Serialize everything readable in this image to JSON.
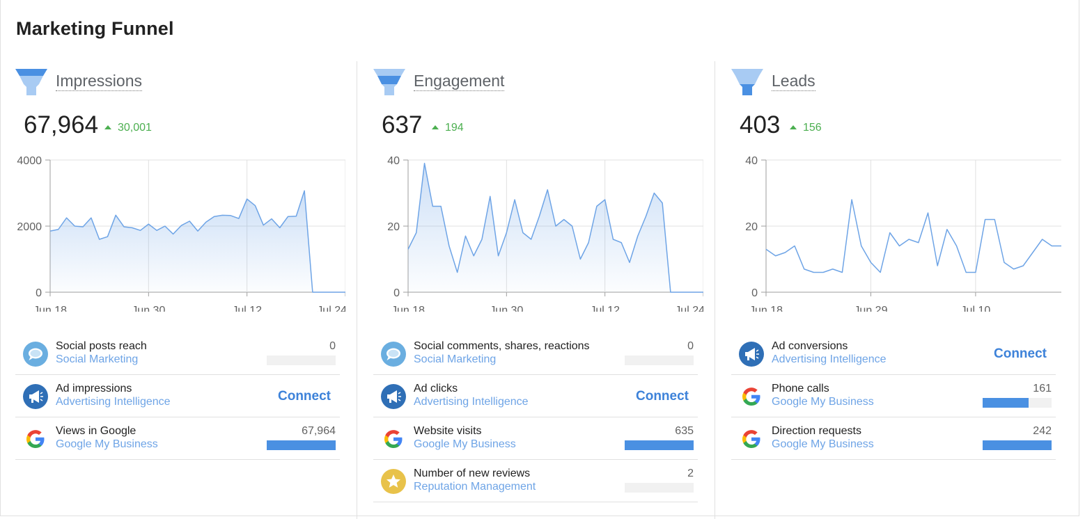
{
  "title": "Marketing Funnel",
  "colors": {
    "accent": "#4a90e2",
    "positive": "#4caf50",
    "link": "#6ea4e6",
    "line": "#6ea4e6"
  },
  "columns": [
    {
      "title": "Impressions",
      "total": "67,964",
      "delta": "30,001",
      "metrics": [
        {
          "icon": "speech-bubble-icon",
          "name": "Social posts reach",
          "source": "Social Marketing",
          "value": "0",
          "bar_fraction": 0
        },
        {
          "icon": "megaphone-icon",
          "name": "Ad impressions",
          "source": "Advertising Intelligence",
          "connect": "Connect"
        },
        {
          "icon": "google-icon",
          "name": "Views in Google",
          "source": "Google My Business",
          "value": "67,964",
          "bar_fraction": 1.0
        }
      ]
    },
    {
      "title": "Engagement",
      "total": "637",
      "delta": "194",
      "metrics": [
        {
          "icon": "speech-bubble-icon",
          "name": "Social comments, shares, reactions",
          "source": "Social Marketing",
          "value": "0",
          "bar_fraction": 0
        },
        {
          "icon": "megaphone-icon",
          "name": "Ad clicks",
          "source": "Advertising Intelligence",
          "connect": "Connect"
        },
        {
          "icon": "google-icon",
          "name": "Website visits",
          "source": "Google My Business",
          "value": "635",
          "bar_fraction": 1.0
        },
        {
          "icon": "star-icon",
          "name": "Number of new reviews",
          "source": "Reputation Management",
          "value": "2",
          "bar_fraction": 0
        }
      ]
    },
    {
      "title": "Leads",
      "total": "403",
      "delta": "156",
      "metrics": [
        {
          "icon": "megaphone-icon",
          "name": "Ad conversions",
          "source": "Advertising Intelligence",
          "connect": "Connect"
        },
        {
          "icon": "google-icon",
          "name": "Phone calls",
          "source": "Google My Business",
          "value": "161",
          "bar_fraction": 0.67
        },
        {
          "icon": "google-icon",
          "name": "Direction requests",
          "source": "Google My Business",
          "value": "242",
          "bar_fraction": 1.0
        }
      ]
    }
  ],
  "chart_data": [
    {
      "type": "area",
      "x_start": "Jun 18",
      "x_end": "Jul 24",
      "x_ticks": [
        "Jun 18",
        "Jun 30",
        "Jul 12",
        "Jul 24"
      ],
      "x_tick_days": [
        0,
        12,
        24,
        36
      ],
      "ylim": [
        0,
        4000
      ],
      "y_ticks": [
        "4000",
        "2000",
        "0"
      ],
      "y_tick_values": [
        4000,
        2000,
        0
      ],
      "grid": true,
      "values": [
        1850,
        1900,
        2250,
        2000,
        1980,
        2250,
        1600,
        1680,
        2330,
        1980,
        1950,
        1870,
        2060,
        1870,
        2000,
        1760,
        2020,
        2150,
        1850,
        2120,
        2290,
        2330,
        2320,
        2230,
        2820,
        2620,
        2030,
        2220,
        1950,
        2290,
        2300,
        3070,
        0,
        0,
        0,
        0,
        0
      ]
    },
    {
      "type": "area",
      "x_start": "Jun 18",
      "x_end": "Jul 24",
      "x_ticks": [
        "Jun 18",
        "Jun 30",
        "Jul 12",
        "Jul 24"
      ],
      "x_tick_days": [
        0,
        12,
        24,
        36
      ],
      "ylim": [
        0,
        40
      ],
      "y_ticks": [
        "40",
        "20",
        "0"
      ],
      "y_tick_values": [
        40,
        20,
        0
      ],
      "grid": true,
      "values": [
        13,
        18,
        39,
        26,
        26,
        14,
        6,
        17,
        11,
        16,
        29,
        11,
        18,
        28,
        18,
        16,
        23,
        31,
        20,
        22,
        20,
        10,
        15,
        26,
        28,
        16,
        15,
        9,
        17,
        23,
        30,
        27,
        0,
        0,
        0,
        0,
        0
      ]
    },
    {
      "type": "line",
      "x_start": "Jun 18",
      "x_end": "Jul 21",
      "x_ticks": [
        "Jun 18",
        "Jun 29",
        "Jul 10"
      ],
      "x_tick_days": [
        0,
        11,
        22
      ],
      "ylim": [
        0,
        40
      ],
      "y_ticks": [
        "40",
        "20",
        "0"
      ],
      "y_tick_values": [
        40,
        20,
        0
      ],
      "grid": true,
      "values": [
        13,
        11,
        12,
        14,
        7,
        6,
        6,
        7,
        6,
        28,
        14,
        9,
        6,
        18,
        14,
        16,
        15,
        24,
        8,
        19,
        14,
        6,
        6,
        22,
        22,
        9,
        7,
        8,
        12,
        16,
        14,
        14
      ]
    }
  ]
}
